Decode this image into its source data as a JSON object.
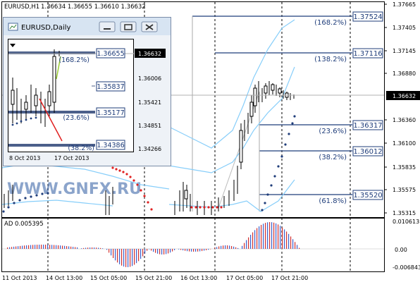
{
  "main_header": {
    "symbol": "EURUSD,H1",
    "ohlc": "1.36634 1.36655 1.36610 1.36632"
  },
  "price_axis": [
    "1.37665",
    "1.37405",
    "1.37145",
    "1.36880",
    "1.36632",
    "1.36360",
    "1.36100",
    "1.35835",
    "1.35575",
    "1.35315"
  ],
  "fib_labels": [
    {
      "price": "1.37524",
      "pct": "(168.2%)"
    },
    {
      "price": "1.37116",
      "pct": "(138.2%)"
    },
    {
      "price": "1.36317",
      "pct": "(23.6%)"
    },
    {
      "price": "1.36012",
      "pct": "(38.2%)"
    },
    {
      "price": "1.35520",
      "pct": "(61.8%)"
    }
  ],
  "current_price": "1.36632",
  "indicator": {
    "label": "AD 0.005395",
    "axis": [
      "0.010613",
      "0.00",
      "-0.006843"
    ]
  },
  "time_axis": [
    "11 Oct 2013",
    "14 Oct 13:00",
    "15 Oct 05:00",
    "15 Oct 21:00",
    "16 Oct 13:00",
    "17 Oct 05:00",
    "17 Oct 21:00"
  ],
  "watermark": "WWW.GNFX.RU",
  "daily_window": {
    "title": "EURUSD,Daily",
    "price_axis": [
      "1.36632",
      "1.36006",
      "1.35421",
      "1.34851",
      "1.34266"
    ],
    "fib_labels": [
      {
        "price": "1.36655",
        "pct": "(168.2%)"
      },
      {
        "price": "1.35837",
        "pct": ""
      },
      {
        "price": "1.35177",
        "pct": "(23.6%)"
      },
      {
        "price": "1.34386",
        "pct": "(38.2%)"
      }
    ],
    "time_axis": [
      "8 Oct 2013",
      "17 Oct 2013"
    ]
  },
  "colors": {
    "bands": "#87cefa",
    "sar_red": "#e02020",
    "sar_blue": "#1f3d7a",
    "fib": "#1f3d7a",
    "histogram_blue": "#3a5fcd",
    "histogram_red": "#d03030",
    "window_title_bg": "#d7e4f2"
  }
}
